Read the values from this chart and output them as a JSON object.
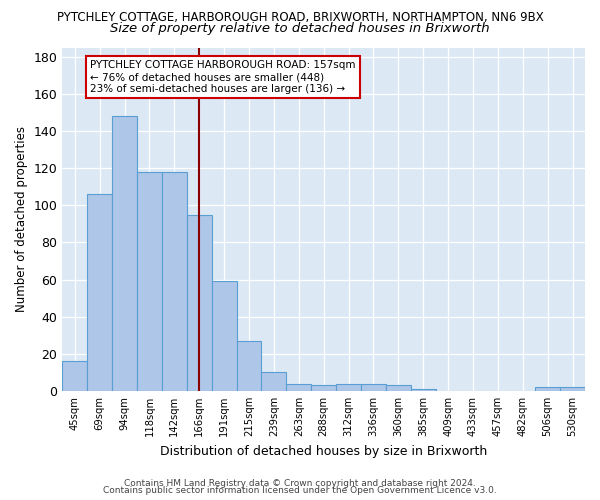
{
  "title": "PYTCHLEY COTTAGE, HARBOROUGH ROAD, BRIXWORTH, NORTHAMPTON, NN6 9BX",
  "subtitle": "Size of property relative to detached houses in Brixworth",
  "xlabel": "Distribution of detached houses by size in Brixworth",
  "ylabel": "Number of detached properties",
  "categories": [
    "45sqm",
    "69sqm",
    "94sqm",
    "118sqm",
    "142sqm",
    "166sqm",
    "191sqm",
    "215sqm",
    "239sqm",
    "263sqm",
    "288sqm",
    "312sqm",
    "336sqm",
    "360sqm",
    "385sqm",
    "409sqm",
    "433sqm",
    "457sqm",
    "482sqm",
    "506sqm",
    "530sqm"
  ],
  "values": [
    16,
    106,
    148,
    118,
    118,
    95,
    59,
    27,
    10,
    4,
    3,
    4,
    4,
    3,
    1,
    0,
    0,
    0,
    0,
    2,
    2
  ],
  "bar_color": "#aec6e8",
  "bar_edge_color": "#5a9fd4",
  "vline_x": 5.0,
  "vline_color": "#8b0000",
  "annotation_title": "PYTCHLEY COTTAGE HARBOROUGH ROAD: 157sqm",
  "annotation_line1": "← 76% of detached houses are smaller (448)",
  "annotation_line2": "23% of semi-detached houses are larger (136) →",
  "annotation_box_color": "#ffffff",
  "annotation_box_edge": "#cc0000",
  "ylim": [
    0,
    185
  ],
  "yticks": [
    0,
    20,
    40,
    60,
    80,
    100,
    120,
    140,
    160,
    180
  ],
  "footnote1": "Contains HM Land Registry data © Crown copyright and database right 2024.",
  "footnote2": "Contains public sector information licensed under the Open Government Licence v3.0.",
  "bg_color": "#dce9f5",
  "title_fontsize": 8.5,
  "subtitle_fontsize": 9.5
}
